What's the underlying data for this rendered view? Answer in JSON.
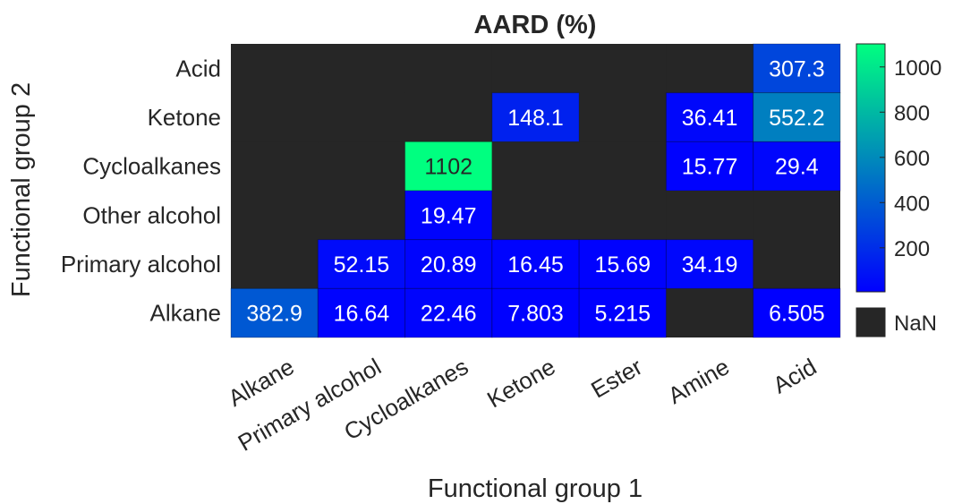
{
  "chart_data": {
    "type": "heatmap",
    "title": "AARD (%)",
    "xlabel": "Functional group 1",
    "ylabel": "Functional group 2",
    "x_categories": [
      "Alkane",
      "Primary alcohol",
      "Cycloalkanes",
      "Ketone",
      "Ester",
      "Amine",
      "Acid"
    ],
    "y_categories": [
      "Acid",
      "Ketone",
      "Cycloalkanes",
      "Other alcohol",
      "Primary alcohol",
      "Alkane"
    ],
    "cells": [
      [
        null,
        null,
        null,
        null,
        null,
        null,
        307.3
      ],
      [
        null,
        null,
        null,
        148.1,
        null,
        36.41,
        552.2
      ],
      [
        null,
        null,
        1102,
        null,
        null,
        15.77,
        29.4
      ],
      [
        null,
        null,
        19.47,
        null,
        null,
        null,
        null
      ],
      [
        null,
        52.15,
        20.89,
        16.45,
        15.69,
        34.19,
        null
      ],
      [
        382.9,
        16.64,
        22.46,
        7.803,
        5.215,
        null,
        6.505
      ]
    ],
    "cell_labels": [
      [
        "",
        "",
        "",
        "",
        "",
        "",
        "307.3"
      ],
      [
        "",
        "",
        "",
        "148.1",
        "",
        "36.41",
        "552.2"
      ],
      [
        "",
        "",
        "1102",
        "",
        "",
        "15.77",
        "29.4"
      ],
      [
        "",
        "",
        "19.47",
        "",
        "",
        "",
        ""
      ],
      [
        "",
        "52.15",
        "20.89",
        "16.45",
        "15.69",
        "34.19",
        ""
      ],
      [
        "382.9",
        "16.64",
        "22.46",
        "7.803",
        "5.215",
        "",
        "6.505"
      ]
    ],
    "colorbar": {
      "min": 5.215,
      "max": 1102,
      "ticks": [
        200,
        400,
        600,
        800,
        1000
      ],
      "tick_labels": [
        "200",
        "400",
        "600",
        "800",
        "1000"
      ],
      "colormap": [
        "#0000ff",
        "#00ff80"
      ]
    },
    "nan_color": "#262626",
    "nan_label": "NaN"
  }
}
